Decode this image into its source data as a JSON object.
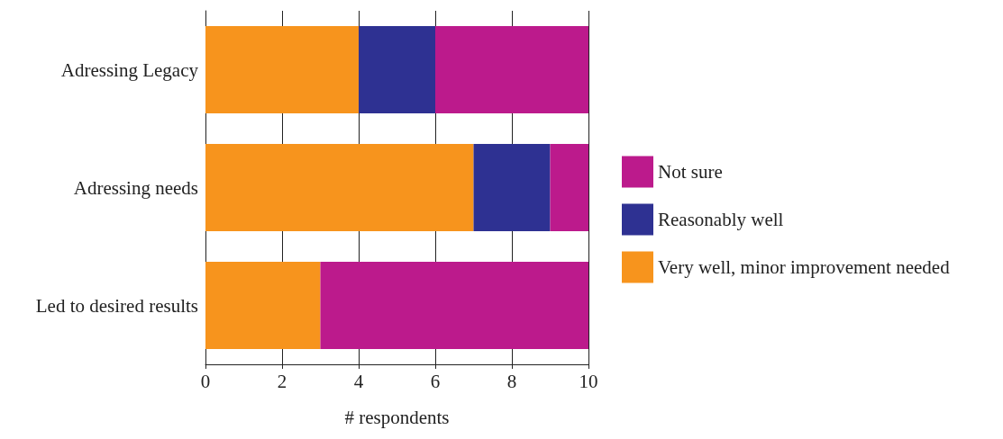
{
  "chart_data": {
    "type": "bar",
    "orientation": "horizontal",
    "stacked": true,
    "xlabel": "# respondents",
    "categories": [
      "Adressing Legacy",
      "Adressing needs",
      "Led to desired results"
    ],
    "series": [
      {
        "name": "Very well, minor improvement needed",
        "color": "#f7941d",
        "values": [
          4,
          7,
          3
        ]
      },
      {
        "name": "Reasonably well",
        "color": "#2e3192",
        "values": [
          2,
          2,
          0
        ]
      },
      {
        "name": "Not sure",
        "color": "#bc1a8c",
        "values": [
          4,
          1,
          7
        ]
      }
    ],
    "xlim": [
      0,
      10
    ],
    "xticks": [
      0,
      2,
      4,
      6,
      8,
      10
    ],
    "grid": "x",
    "legend": "right"
  }
}
